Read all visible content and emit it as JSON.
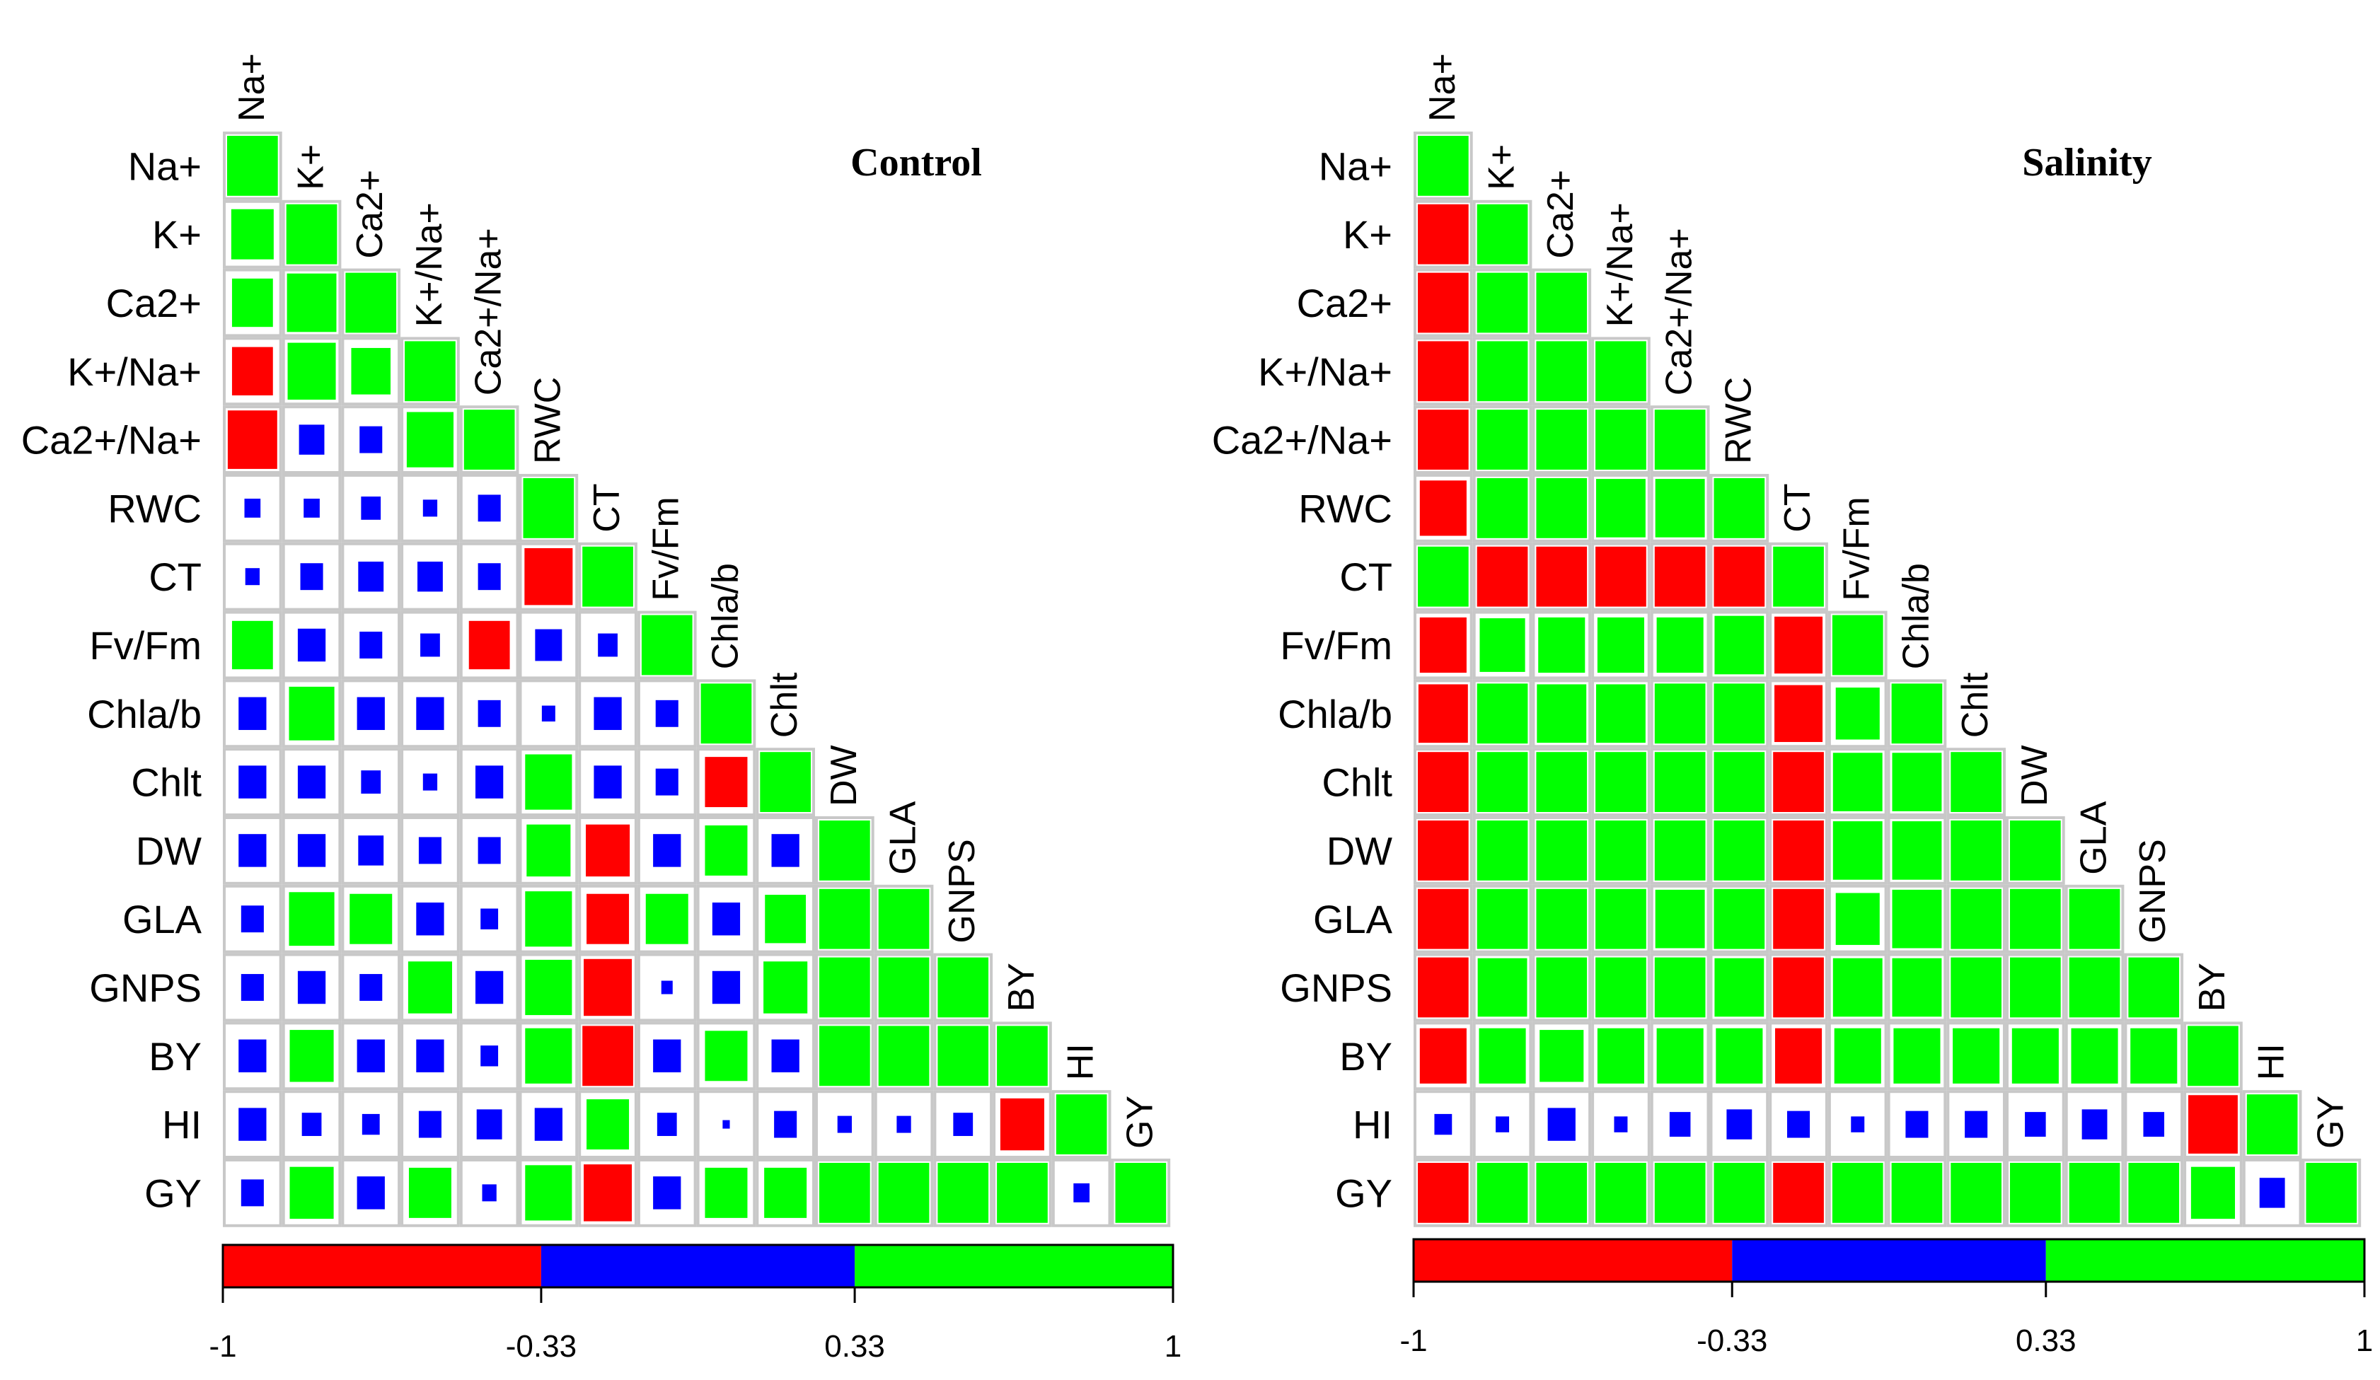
{
  "chart_data": [
    {
      "type": "heatmap",
      "title": "Control",
      "variables": [
        "Na+",
        "K+",
        "Ca2+",
        "K+/Na+",
        "Ca2+/Na+",
        "RWC",
        "CT",
        "Fv/Fm",
        "Chla/b",
        "Chlt",
        "DW",
        "GLA",
        "GNPS",
        "BY",
        "HI",
        "GY"
      ],
      "matrix": [
        [
          1.0
        ],
        [
          0.7,
          1.0
        ],
        [
          0.65,
          0.95,
          1.0
        ],
        [
          -0.65,
          0.9,
          0.6,
          1.0
        ],
        [
          -0.95,
          -0.25,
          -0.2,
          0.85,
          1.0
        ],
        [
          0.1,
          0.1,
          0.15,
          0.08,
          0.2,
          1.0
        ],
        [
          0.08,
          0.2,
          0.25,
          0.25,
          0.2,
          -0.9,
          1.0
        ],
        [
          0.65,
          0.3,
          0.2,
          0.15,
          -0.65,
          0.28,
          0.15,
          1.0
        ],
        [
          0.3,
          0.8,
          0.3,
          0.3,
          0.2,
          0.07,
          0.3,
          0.2,
          1.0
        ],
        [
          0.3,
          0.3,
          0.15,
          0.08,
          0.3,
          0.85,
          0.3,
          0.2,
          -0.7,
          1.0
        ],
        [
          0.3,
          0.3,
          0.25,
          0.2,
          0.2,
          0.75,
          -0.75,
          0.3,
          0.7,
          0.3,
          1.0
        ],
        [
          0.2,
          0.8,
          0.7,
          0.3,
          0.12,
          0.85,
          -0.7,
          0.7,
          0.3,
          0.65,
          1.0,
          1.0
        ],
        [
          0.2,
          0.3,
          0.2,
          0.75,
          0.3,
          0.85,
          -0.9,
          0.05,
          0.3,
          0.75,
          1.0,
          1.0,
          1.0
        ],
        [
          0.3,
          0.75,
          0.3,
          0.3,
          0.12,
          0.85,
          -1.0,
          0.3,
          0.7,
          0.3,
          1.0,
          1.0,
          1.0,
          1.0
        ],
        [
          0.3,
          0.15,
          0.12,
          0.2,
          0.25,
          0.3,
          0.7,
          0.15,
          0.02,
          0.2,
          0.08,
          0.08,
          0.15,
          -0.75,
          1.0
        ],
        [
          0.2,
          0.75,
          0.3,
          0.7,
          0.08,
          0.85,
          -0.9,
          0.3,
          0.7,
          0.7,
          1.0,
          1.0,
          1.0,
          1.0,
          0.1,
          1.0
        ]
      ],
      "color_scale": {
        "ticks": [
          "-1",
          "-0.33",
          "0.33",
          "1"
        ],
        "bins": [
          {
            "from": -1,
            "to": -0.33,
            "color": "#ff0000"
          },
          {
            "from": -0.33,
            "to": 0.33,
            "color": "#0000ff"
          },
          {
            "from": 0.33,
            "to": 1,
            "color": "#00ff00"
          }
        ]
      }
    },
    {
      "type": "heatmap",
      "title": "Salinity",
      "variables": [
        "Na+",
        "K+",
        "Ca2+",
        "K+/Na+",
        "Ca2+/Na+",
        "RWC",
        "CT",
        "Fv/Fm",
        "Chla/b",
        "Chlt",
        "DW",
        "GLA",
        "GNPS",
        "BY",
        "HI",
        "GY"
      ],
      "matrix": [
        [
          1.0
        ],
        [
          -1.0,
          1.0
        ],
        [
          -1.0,
          1.0,
          1.0
        ],
        [
          -1.0,
          1.0,
          1.0,
          1.0
        ],
        [
          -1.0,
          1.0,
          1.0,
          1.0,
          1.0
        ],
        [
          -0.85,
          1.0,
          1.0,
          0.95,
          0.95,
          1.0
        ],
        [
          1.0,
          -1.0,
          -1.0,
          -1.0,
          -1.0,
          -1.0,
          1.0
        ],
        [
          -0.85,
          0.8,
          0.85,
          0.85,
          0.85,
          0.95,
          -0.9,
          1.0
        ],
        [
          -0.95,
          1.0,
          0.95,
          0.95,
          1.0,
          1.0,
          -0.9,
          0.75,
          1.0
        ],
        [
          -1.0,
          1.0,
          1.0,
          1.0,
          1.0,
          1.0,
          -1.0,
          0.95,
          0.95,
          1.0
        ],
        [
          -1.0,
          1.0,
          1.0,
          1.0,
          1.0,
          1.0,
          -1.0,
          0.95,
          0.95,
          1.0,
          1.0
        ],
        [
          -1.0,
          1.0,
          1.0,
          1.0,
          0.95,
          1.0,
          -1.0,
          0.75,
          0.95,
          1.0,
          1.0,
          1.0
        ],
        [
          -1.0,
          0.95,
          1.0,
          1.0,
          1.0,
          0.95,
          -1.0,
          0.95,
          0.95,
          1.0,
          1.0,
          1.0,
          1.0
        ],
        [
          -0.85,
          0.85,
          0.75,
          0.85,
          0.85,
          0.85,
          -0.85,
          0.85,
          0.85,
          0.85,
          0.85,
          0.85,
          0.85,
          1.0
        ],
        [
          0.12,
          0.07,
          0.3,
          0.07,
          0.17,
          0.25,
          0.2,
          0.07,
          0.2,
          0.2,
          0.17,
          0.25,
          0.17,
          -0.95,
          1.0
        ],
        [
          -1.0,
          1.0,
          1.0,
          1.0,
          1.0,
          1.0,
          -1.0,
          1.0,
          1.0,
          1.0,
          1.0,
          1.0,
          1.0,
          0.75,
          0.25,
          1.0
        ]
      ],
      "color_scale": {
        "ticks": [
          "-1",
          "-0.33",
          "0.33",
          "1"
        ],
        "bins": [
          {
            "from": -1,
            "to": -0.33,
            "color": "#ff0000"
          },
          {
            "from": -0.33,
            "to": 0.33,
            "color": "#0000ff"
          },
          {
            "from": 0.33,
            "to": 1,
            "color": "#00ff00"
          }
        ]
      }
    }
  ]
}
